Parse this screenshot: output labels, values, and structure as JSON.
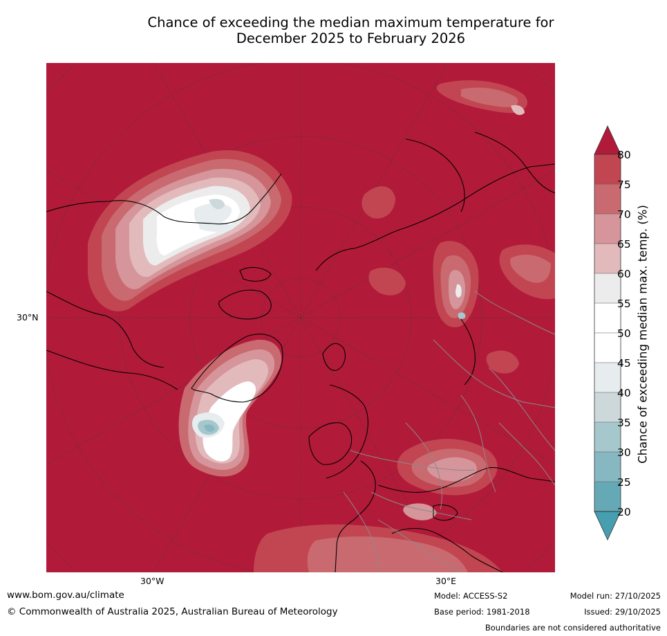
{
  "title": {
    "line1": "Chance of exceeding the median maximum temperature for",
    "line2": "December 2025 to February 2026"
  },
  "map": {
    "projection": "north polar stereographic",
    "region": "Northern Hemisphere (Arctic, North Atlantic, Europe, North Asia)",
    "lat_label": "30°N",
    "lon_labels": [
      "30°W",
      "30°E"
    ],
    "colors": {
      "gt80": "#b11b39",
      "c75_80": "#c24652",
      "c70_75": "#c96a70",
      "c65_70": "#d5959a",
      "c60_65": "#e2babc",
      "c55_60": "#ececec",
      "c50_55": "#ffffff",
      "c45_50": "#ffffff",
      "c40_45": "#e7ecee",
      "c35_40": "#cdd8da",
      "c30_35": "#a6c7cc",
      "c25_30": "#87b8c1",
      "c20_25": "#66a9b6",
      "lt20": "#469eae",
      "coastline": "#000000",
      "borders": "#8a8a8a",
      "graticule": "#3a3a3a"
    }
  },
  "colorbar": {
    "label": "Chance of exceeding median max. temp. (%)",
    "ticks": [
      "80",
      "75",
      "70",
      "65",
      "60",
      "55",
      "50",
      "45",
      "40",
      "35",
      "30",
      "25",
      "20"
    ]
  },
  "footer": {
    "website": "www.bom.gov.au/climate",
    "copyright": "© Commonwealth of Australia 2025, Australian Bureau of Meteorology",
    "model": "Model: ACCESS-S2",
    "base_period": "Base period: 1981-2018",
    "model_run": "Model run: 27/10/2025",
    "issued": "Issued: 29/10/2025",
    "disclaimer": "Boundaries are not considered authoritative"
  }
}
